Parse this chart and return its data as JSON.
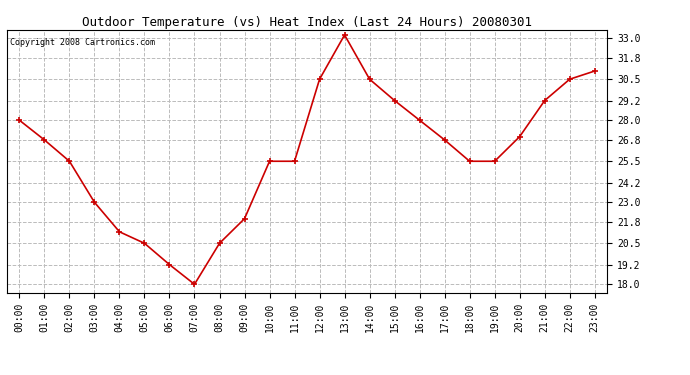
{
  "title": "Outdoor Temperature (vs) Heat Index (Last 24 Hours) 20080301",
  "copyright_text": "Copyright 2008 Cartronics.com",
  "x_labels": [
    "00:00",
    "01:00",
    "02:00",
    "03:00",
    "04:00",
    "05:00",
    "06:00",
    "07:00",
    "08:00",
    "09:00",
    "10:00",
    "11:00",
    "12:00",
    "13:00",
    "14:00",
    "15:00",
    "16:00",
    "17:00",
    "18:00",
    "19:00",
    "20:00",
    "21:00",
    "22:00",
    "23:00"
  ],
  "y_values": [
    28.0,
    26.8,
    25.5,
    23.0,
    21.2,
    20.5,
    19.2,
    18.0,
    20.5,
    22.0,
    25.5,
    25.5,
    30.5,
    33.2,
    30.5,
    29.2,
    28.0,
    26.8,
    25.5,
    25.5,
    27.0,
    29.2,
    30.5,
    31.0
  ],
  "y_ticks": [
    18.0,
    19.2,
    20.5,
    21.8,
    23.0,
    24.2,
    25.5,
    26.8,
    28.0,
    29.2,
    30.5,
    31.8,
    33.0
  ],
  "ylim": [
    17.5,
    33.5
  ],
  "line_color": "#cc0000",
  "marker_color": "#cc0000",
  "bg_color": "#ffffff",
  "plot_bg_color": "#ffffff",
  "grid_color": "#bbbbbb",
  "title_fontsize": 9,
  "copyright_fontsize": 6,
  "tick_fontsize": 7
}
